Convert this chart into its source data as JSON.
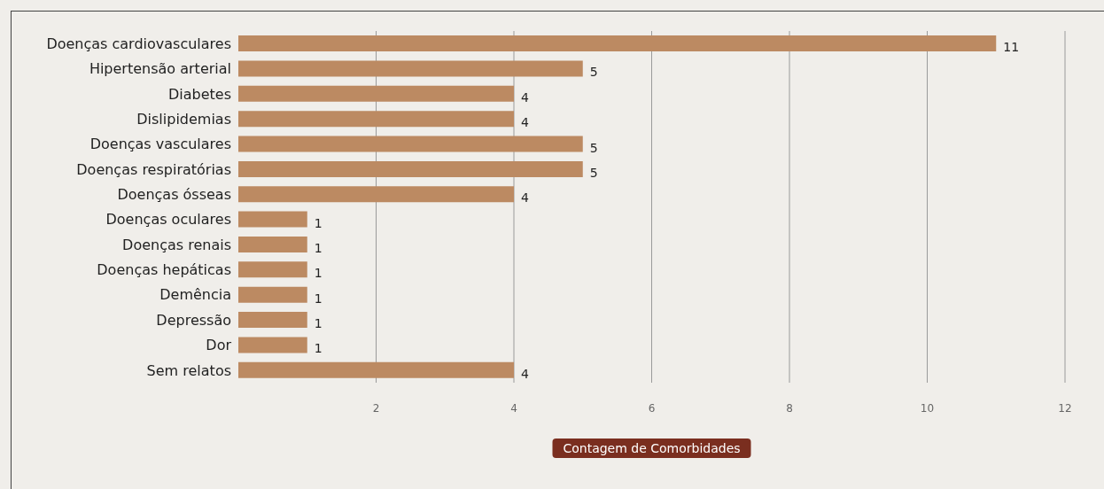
{
  "chart_data": {
    "type": "bar",
    "orientation": "horizontal",
    "xlabel": "Contagem de Comorbidades",
    "categories": [
      "Doenças cardiovasculares",
      "Hipertensão arterial",
      "Diabetes",
      "Dislipidemias",
      "Doenças vasculares",
      "Doenças respiratórias",
      "Doenças ósseas",
      "Doenças oculares",
      "Doenças renais",
      "Doenças hepáticas",
      "Demência",
      "Depressão",
      "Dor",
      "Sem relatos"
    ],
    "values": [
      11,
      5,
      4,
      4,
      5,
      5,
      4,
      1,
      1,
      1,
      1,
      1,
      1,
      4
    ],
    "color": "#bc8a62",
    "xlim": [
      0,
      12
    ],
    "xticks": [
      2,
      4,
      6,
      8,
      10,
      12
    ],
    "grid": "x",
    "data_labels": true
  }
}
